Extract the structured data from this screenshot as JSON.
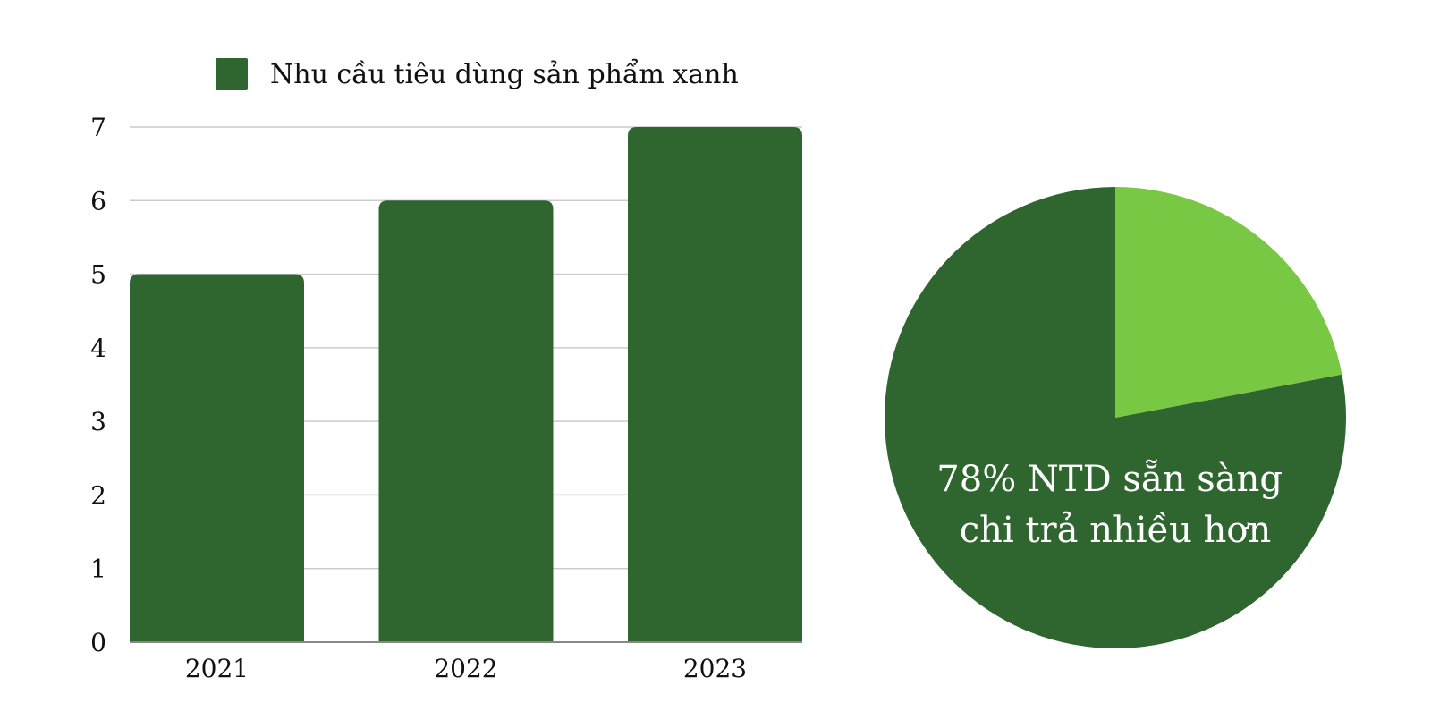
{
  "chart_data": [
    {
      "type": "bar",
      "categories": [
        "2021",
        "2022",
        "2023"
      ],
      "series": [
        {
          "name": "Nhu cầu tiêu dùng sản phẩm xanh",
          "values": [
            5,
            6,
            7
          ]
        }
      ],
      "ylim": [
        0,
        7
      ],
      "yticks": [
        0,
        1,
        2,
        3,
        4,
        5,
        6,
        7
      ],
      "grid": true,
      "legend": "top",
      "colors": {
        "bar": "#2f6630",
        "grid": "#cccccc",
        "axis": "#888888"
      }
    },
    {
      "type": "pie",
      "slices": [
        {
          "value": 78,
          "color": "#2f6630"
        },
        {
          "value": 22,
          "color": "#79c843"
        }
      ],
      "label_lines": [
        "78% NTD sẵn sàng",
        "chi trả nhiều hơn"
      ]
    }
  ]
}
